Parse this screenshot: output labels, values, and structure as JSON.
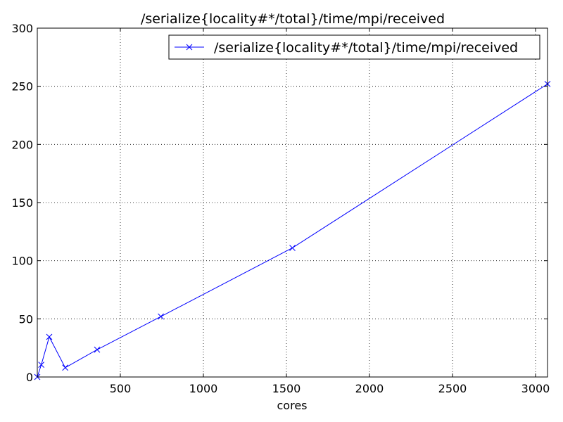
{
  "chart_data": {
    "type": "line",
    "title": "/serialize{locality#*/total}/time/mpi/received",
    "xlabel": "cores",
    "ylabel": "",
    "xlim": [
      0,
      3072
    ],
    "ylim": [
      0,
      300
    ],
    "xticks": [
      500,
      1000,
      1500,
      2000,
      2500,
      3000
    ],
    "yticks": [
      0,
      50,
      100,
      150,
      200,
      250,
      300
    ],
    "grid": true,
    "legend_position": "top-right",
    "series": [
      {
        "name": "/serialize{locality#*/total}/time/mpi/received",
        "color": "#0000ff",
        "marker": "x",
        "x": [
          0,
          24,
          72,
          168,
          360,
          744,
          1536,
          3072
        ],
        "y": [
          0,
          10.5,
          34.5,
          8,
          23.5,
          52,
          111,
          252
        ]
      }
    ]
  }
}
